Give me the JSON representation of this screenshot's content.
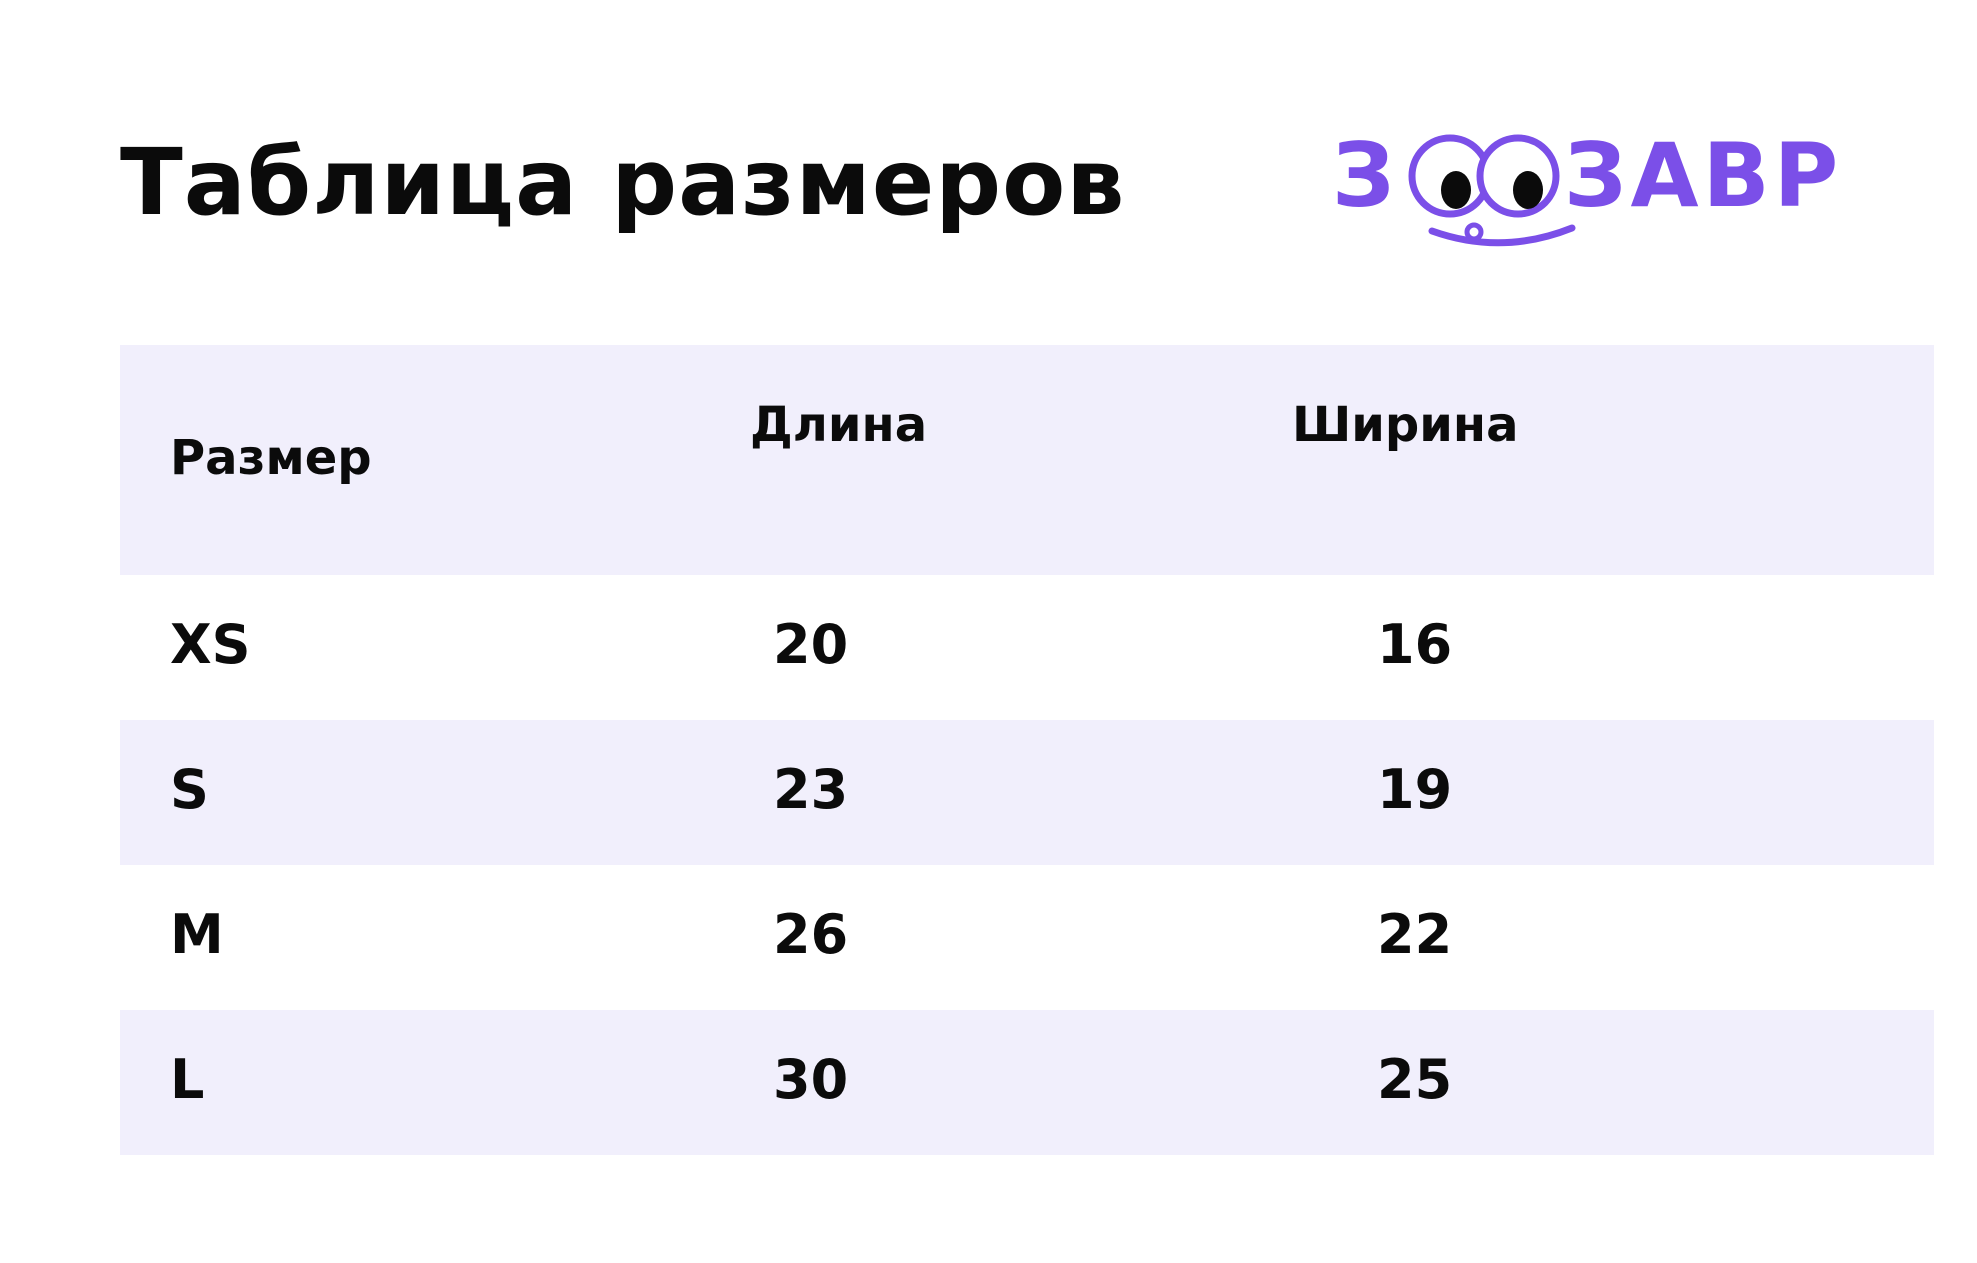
{
  "title": "Таблица размеров",
  "logo": {
    "text": "ЗООЗАВР",
    "color": "#7b4fe8",
    "icon": "googly-eyes-smile-logo"
  },
  "colors": {
    "row_shade": "#f1effc",
    "text": "#0b0b0b"
  },
  "table": {
    "headers": {
      "size": "Размер",
      "length": "Длина",
      "width": "Ширина"
    },
    "rows": [
      {
        "size": "XS",
        "length": "20",
        "width": "16"
      },
      {
        "size": "S",
        "length": "23",
        "width": "19"
      },
      {
        "size": "M",
        "length": "26",
        "width": "22"
      },
      {
        "size": "L",
        "length": "30",
        "width": "25"
      }
    ]
  }
}
